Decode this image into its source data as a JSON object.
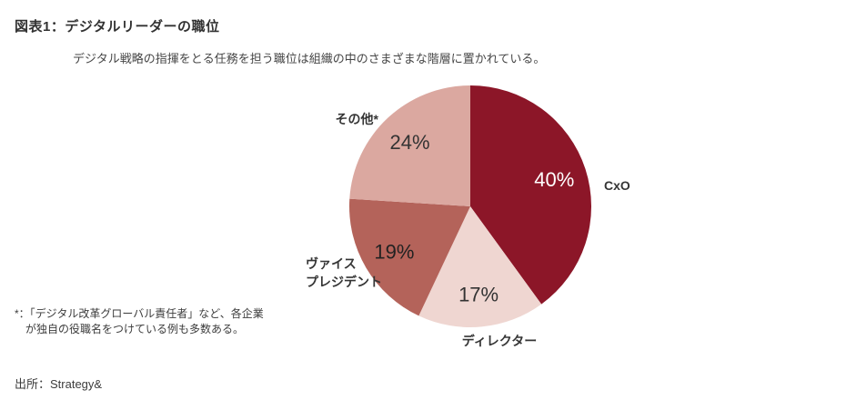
{
  "header": {
    "title": "図表1：デジタルリーダーの職位",
    "subtitle": "デジタル戦略の指揮をとる任務を担う職位は組織の中のさまざまな階層に置かれている。"
  },
  "chart_data": {
    "type": "pie",
    "title": "デジタルリーダーの職位",
    "unit": "%",
    "start_angle": "top",
    "direction": "clockwise",
    "legend_position": "labels-outside",
    "slices": [
      {
        "label": "CxO",
        "value": 40,
        "color": "#8C1628",
        "value_label": "40%",
        "value_label_color": "#FFFFFF"
      },
      {
        "label": "ディレクター",
        "value": 17,
        "color": "#EFD6D1",
        "value_label": "17%",
        "value_label_color": "#333333"
      },
      {
        "label": "ヴァイス\nプレジデント",
        "value": 19,
        "color": "#B4635A",
        "value_label": "19%",
        "value_label_color": "#222222"
      },
      {
        "label": "その他*",
        "value": 24,
        "color": "#DBA8A0",
        "value_label": "24%",
        "value_label_color": "#333333"
      }
    ]
  },
  "footnote": "*：「デジタル改革グローバル責任者」など、各企業\n　が独自の役職名をつけている例も多数ある。",
  "source": "出所：Strategy&"
}
